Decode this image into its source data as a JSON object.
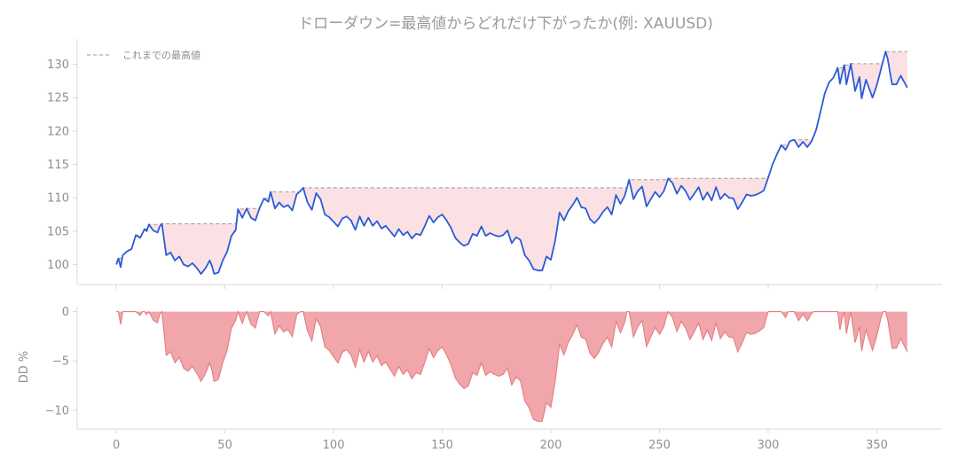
{
  "chart_data": [
    {
      "type": "line",
      "title": "ドローダウン=最高値からどれだけ下がったか(例: XAUUSD)",
      "xlim": [
        -18,
        380
      ],
      "ylim": [
        97,
        133.8
      ],
      "yticks": [
        100,
        105,
        110,
        115,
        120,
        125,
        130
      ],
      "legend": {
        "label": "これまでの最高値",
        "placement": "top-left"
      },
      "grid": false,
      "colors": {
        "price": "#2a5bd7",
        "peak": "#999999",
        "fill": "#fbe1e3"
      },
      "price_anchors": [
        [
          0,
          100.0
        ],
        [
          1,
          100.9
        ],
        [
          2,
          99.6
        ],
        [
          3,
          101.4
        ],
        [
          5,
          102.0
        ],
        [
          7,
          102.3
        ],
        [
          9,
          104.4
        ],
        [
          11,
          104.0
        ],
        [
          13,
          105.3
        ],
        [
          14,
          105.0
        ],
        [
          15,
          106.0
        ],
        [
          17,
          105.1
        ],
        [
          19,
          104.8
        ],
        [
          20,
          105.7
        ],
        [
          21,
          106.1
        ],
        [
          23,
          101.4
        ],
        [
          25,
          101.8
        ],
        [
          27,
          100.6
        ],
        [
          29,
          101.2
        ],
        [
          31,
          100.0
        ],
        [
          33,
          99.7
        ],
        [
          35,
          100.2
        ],
        [
          37,
          99.5
        ],
        [
          39,
          98.6
        ],
        [
          41,
          99.4
        ],
        [
          43,
          100.6
        ],
        [
          44,
          99.8
        ],
        [
          45,
          98.6
        ],
        [
          47,
          98.8
        ],
        [
          49,
          100.6
        ],
        [
          51,
          101.9
        ],
        [
          53,
          104.3
        ],
        [
          55,
          105.2
        ],
        [
          56,
          108.3
        ],
        [
          58,
          107.0
        ],
        [
          60,
          108.4
        ],
        [
          62,
          107.0
        ],
        [
          64,
          106.6
        ],
        [
          66,
          108.5
        ],
        [
          68,
          109.9
        ],
        [
          70,
          109.4
        ],
        [
          71,
          110.9
        ],
        [
          73,
          108.4
        ],
        [
          75,
          109.3
        ],
        [
          77,
          108.6
        ],
        [
          79,
          108.9
        ],
        [
          81,
          108.1
        ],
        [
          83,
          110.5
        ],
        [
          85,
          111.1
        ],
        [
          86,
          111.5
        ],
        [
          88,
          109.3
        ],
        [
          90,
          108.2
        ],
        [
          92,
          110.7
        ],
        [
          94,
          109.8
        ],
        [
          96,
          107.5
        ],
        [
          98,
          107.1
        ],
        [
          100,
          106.4
        ],
        [
          102,
          105.7
        ],
        [
          104,
          106.9
        ],
        [
          106,
          107.2
        ],
        [
          108,
          106.6
        ],
        [
          110,
          105.2
        ],
        [
          112,
          107.2
        ],
        [
          114,
          105.8
        ],
        [
          116,
          107.0
        ],
        [
          118,
          105.8
        ],
        [
          120,
          106.5
        ],
        [
          122,
          105.4
        ],
        [
          124,
          105.8
        ],
        [
          126,
          105.0
        ],
        [
          128,
          104.2
        ],
        [
          130,
          105.3
        ],
        [
          132,
          104.4
        ],
        [
          134,
          104.9
        ],
        [
          136,
          103.9
        ],
        [
          138,
          104.6
        ],
        [
          140,
          104.4
        ],
        [
          142,
          105.8
        ],
        [
          144,
          107.3
        ],
        [
          146,
          106.3
        ],
        [
          148,
          107.1
        ],
        [
          150,
          107.5
        ],
        [
          152,
          106.6
        ],
        [
          154,
          105.5
        ],
        [
          156,
          104.0
        ],
        [
          158,
          103.3
        ],
        [
          160,
          102.8
        ],
        [
          162,
          103.1
        ],
        [
          164,
          104.6
        ],
        [
          166,
          104.3
        ],
        [
          168,
          105.7
        ],
        [
          170,
          104.3
        ],
        [
          172,
          104.7
        ],
        [
          174,
          104.4
        ],
        [
          176,
          104.2
        ],
        [
          178,
          104.4
        ],
        [
          180,
          105.1
        ],
        [
          182,
          103.2
        ],
        [
          184,
          104.1
        ],
        [
          186,
          103.7
        ],
        [
          188,
          101.4
        ],
        [
          190,
          100.6
        ],
        [
          192,
          99.3
        ],
        [
          194,
          99.1
        ],
        [
          196,
          99.1
        ],
        [
          198,
          101.2
        ],
        [
          200,
          100.7
        ],
        [
          202,
          103.6
        ],
        [
          204,
          107.8
        ],
        [
          206,
          106.6
        ],
        [
          208,
          108.0
        ],
        [
          210,
          108.9
        ],
        [
          212,
          110.0
        ],
        [
          214,
          108.6
        ],
        [
          216,
          108.4
        ],
        [
          218,
          106.8
        ],
        [
          220,
          106.2
        ],
        [
          222,
          106.9
        ],
        [
          224,
          107.9
        ],
        [
          226,
          108.6
        ],
        [
          228,
          107.5
        ],
        [
          230,
          110.4
        ],
        [
          232,
          109.1
        ],
        [
          234,
          110.3
        ],
        [
          236,
          112.7
        ],
        [
          238,
          109.8
        ],
        [
          240,
          111.0
        ],
        [
          242,
          111.7
        ],
        [
          244,
          108.7
        ],
        [
          246,
          109.8
        ],
        [
          248,
          110.9
        ],
        [
          250,
          110.1
        ],
        [
          252,
          111.0
        ],
        [
          254,
          112.9
        ],
        [
          256,
          112.2
        ],
        [
          258,
          110.6
        ],
        [
          260,
          111.8
        ],
        [
          262,
          111.0
        ],
        [
          264,
          109.7
        ],
        [
          266,
          110.6
        ],
        [
          268,
          111.6
        ],
        [
          270,
          109.7
        ],
        [
          272,
          110.8
        ],
        [
          274,
          109.6
        ],
        [
          276,
          111.6
        ],
        [
          278,
          109.8
        ],
        [
          280,
          110.6
        ],
        [
          282,
          110.0
        ],
        [
          284,
          109.9
        ],
        [
          286,
          108.3
        ],
        [
          288,
          109.3
        ],
        [
          290,
          110.5
        ],
        [
          292,
          110.3
        ],
        [
          294,
          110.4
        ],
        [
          296,
          110.7
        ],
        [
          298,
          111.1
        ],
        [
          300,
          113.0
        ],
        [
          302,
          115.0
        ],
        [
          304,
          116.5
        ],
        [
          306,
          117.9
        ],
        [
          308,
          117.2
        ],
        [
          310,
          118.5
        ],
        [
          312,
          118.7
        ],
        [
          314,
          117.6
        ],
        [
          316,
          118.4
        ],
        [
          318,
          117.6
        ],
        [
          320,
          118.5
        ],
        [
          322,
          120.1
        ],
        [
          324,
          122.8
        ],
        [
          326,
          125.6
        ],
        [
          328,
          127.3
        ],
        [
          330,
          128.0
        ],
        [
          332,
          129.5
        ],
        [
          333,
          127.1
        ],
        [
          335,
          129.9
        ],
        [
          336,
          127.0
        ],
        [
          338,
          130.1
        ],
        [
          340,
          126.0
        ],
        [
          342,
          128.1
        ],
        [
          343,
          124.9
        ],
        [
          345,
          127.7
        ],
        [
          346,
          126.8
        ],
        [
          348,
          125.0
        ],
        [
          350,
          126.9
        ],
        [
          352,
          129.4
        ],
        [
          354,
          131.9
        ],
        [
          355,
          130.8
        ],
        [
          357,
          127.0
        ],
        [
          359,
          127.0
        ],
        [
          361,
          128.3
        ],
        [
          363,
          127.1
        ],
        [
          364,
          126.5
        ]
      ]
    },
    {
      "type": "area",
      "ylabel": "DD %",
      "xlim": [
        -18,
        380
      ],
      "ylim": [
        -11.9,
        0.5
      ],
      "xticks": [
        0,
        50,
        100,
        150,
        200,
        250,
        300,
        350
      ],
      "yticks": [
        0,
        -5,
        -10
      ],
      "grid": false,
      "colors": {
        "fill": "#f0a6aa",
        "line": "#e47d81"
      },
      "derived_from": "drawdown of the price series against its running maximum"
    }
  ]
}
